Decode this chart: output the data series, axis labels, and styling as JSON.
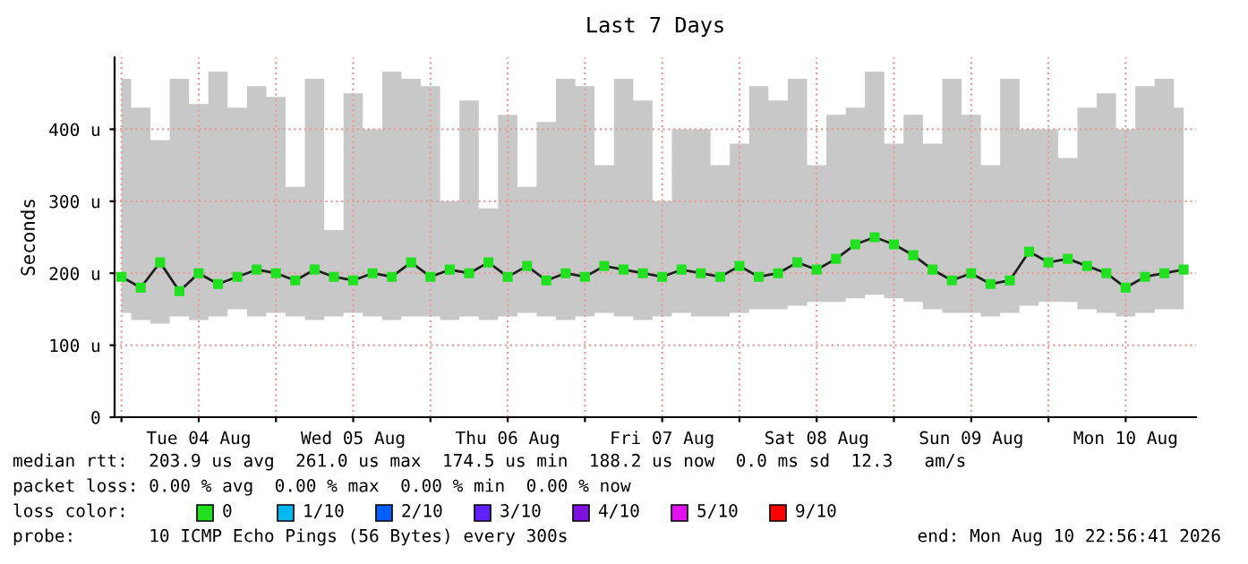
{
  "chart_data": {
    "type": "line",
    "title": "Last 7 Days",
    "ylabel": "Seconds",
    "x": [
      "2026-08-04T00:00",
      "2026-08-04T03:00",
      "2026-08-04T06:00",
      "2026-08-04T09:00",
      "2026-08-04T12:00",
      "2026-08-04T15:00",
      "2026-08-04T18:00",
      "2026-08-04T21:00",
      "2026-08-05T00:00",
      "2026-08-05T03:00",
      "2026-08-05T06:00",
      "2026-08-05T09:00",
      "2026-08-05T12:00",
      "2026-08-05T15:00",
      "2026-08-05T18:00",
      "2026-08-05T21:00",
      "2026-08-06T00:00",
      "2026-08-06T03:00",
      "2026-08-06T06:00",
      "2026-08-06T09:00",
      "2026-08-06T12:00",
      "2026-08-06T15:00",
      "2026-08-06T18:00",
      "2026-08-06T21:00",
      "2026-08-07T00:00",
      "2026-08-07T03:00",
      "2026-08-07T06:00",
      "2026-08-07T09:00",
      "2026-08-07T12:00",
      "2026-08-07T15:00",
      "2026-08-07T18:00",
      "2026-08-07T21:00",
      "2026-08-08T00:00",
      "2026-08-08T03:00",
      "2026-08-08T06:00",
      "2026-08-08T09:00",
      "2026-08-08T12:00",
      "2026-08-08T15:00",
      "2026-08-08T18:00",
      "2026-08-08T21:00",
      "2026-08-09T00:00",
      "2026-08-09T03:00",
      "2026-08-09T06:00",
      "2026-08-09T09:00",
      "2026-08-09T12:00",
      "2026-08-09T15:00",
      "2026-08-09T18:00",
      "2026-08-09T21:00",
      "2026-08-10T00:00",
      "2026-08-10T03:00",
      "2026-08-10T06:00",
      "2026-08-10T09:00",
      "2026-08-10T12:00",
      "2026-08-10T15:00",
      "2026-08-10T18:00",
      "2026-08-10T21:00"
    ],
    "series": [
      {
        "name": "0",
        "color": "#20e020",
        "values": [
          195,
          180,
          215,
          175,
          200,
          185,
          195,
          205,
          200,
          190,
          205,
          195,
          190,
          200,
          195,
          215,
          195,
          205,
          200,
          215,
          195,
          210,
          190,
          200,
          195,
          210,
          205,
          200,
          195,
          205,
          200,
          195,
          210,
          195,
          200,
          215,
          205,
          220,
          240,
          250,
          240,
          225,
          205,
          190,
          200,
          185,
          190,
          230,
          215,
          220,
          210,
          200,
          180,
          195,
          200,
          205
        ],
        "lower": [
          145,
          135,
          130,
          140,
          135,
          140,
          150,
          140,
          145,
          140,
          135,
          140,
          145,
          140,
          135,
          140,
          140,
          135,
          140,
          135,
          140,
          145,
          140,
          135,
          140,
          145,
          140,
          135,
          140,
          145,
          140,
          140,
          145,
          150,
          150,
          155,
          160,
          160,
          165,
          170,
          165,
          160,
          150,
          145,
          145,
          140,
          145,
          155,
          160,
          160,
          150,
          145,
          140,
          145,
          150,
          150
        ],
        "upper": [
          470,
          430,
          385,
          470,
          435,
          480,
          430,
          460,
          445,
          320,
          470,
          260,
          450,
          400,
          480,
          470,
          460,
          300,
          440,
          290,
          420,
          320,
          410,
          470,
          460,
          350,
          470,
          440,
          300,
          400,
          400,
          350,
          380,
          460,
          440,
          470,
          350,
          420,
          430,
          480,
          380,
          420,
          380,
          470,
          420,
          350,
          470,
          400,
          400,
          360,
          430,
          450,
          400,
          460,
          470,
          430
        ]
      }
    ],
    "xlim": [
      "2026-08-03T22:56",
      "2026-08-10T22:56"
    ],
    "xticks": [
      {
        "value": "2026-08-04T00:00",
        "label": null
      },
      {
        "value": "2026-08-04T12:00",
        "label": "Tue 04 Aug"
      },
      {
        "value": "2026-08-05T00:00",
        "label": null
      },
      {
        "value": "2026-08-05T12:00",
        "label": "Wed 05 Aug"
      },
      {
        "value": "2026-08-06T00:00",
        "label": null
      },
      {
        "value": "2026-08-06T12:00",
        "label": "Thu 06 Aug"
      },
      {
        "value": "2026-08-07T00:00",
        "label": null
      },
      {
        "value": "2026-08-07T12:00",
        "label": "Fri 07 Aug"
      },
      {
        "value": "2026-08-08T00:00",
        "label": null
      },
      {
        "value": "2026-08-08T12:00",
        "label": "Sat 08 Aug"
      },
      {
        "value": "2026-08-09T00:00",
        "label": null
      },
      {
        "value": "2026-08-09T12:00",
        "label": "Sun 09 Aug"
      },
      {
        "value": "2026-08-10T00:00",
        "label": null
      },
      {
        "value": "2026-08-10T12:00",
        "label": "Mon 10 Aug"
      }
    ],
    "ylim": [
      0,
      500
    ],
    "yticks": [
      0,
      {
        "value": 100,
        "label": "100 u"
      },
      {
        "value": 200,
        "label": "200 u"
      },
      {
        "value": 300,
        "label": "300 u"
      },
      {
        "value": 400,
        "label": "400 u"
      }
    ],
    "grid": true,
    "marker": "square",
    "line_style": "solid",
    "annotations": [
      "median rtt:  203.9 us avg  261.0 us max  174.5 us min  188.2 us now  0.0 ms sd  12.3   am/s",
      "packet loss: 0.00 % avg  0.00 % max  0.00 % min  0.00 % now",
      "loss color:",
      "1/10",
      "2/10",
      "3/10",
      "4/10",
      "5/10",
      "9/10",
      "probe:       10 ICMP Echo Pings (56 Bytes) every 300s",
      "end: Mon Aug 10 22:56:41 2026"
    ]
  }
}
